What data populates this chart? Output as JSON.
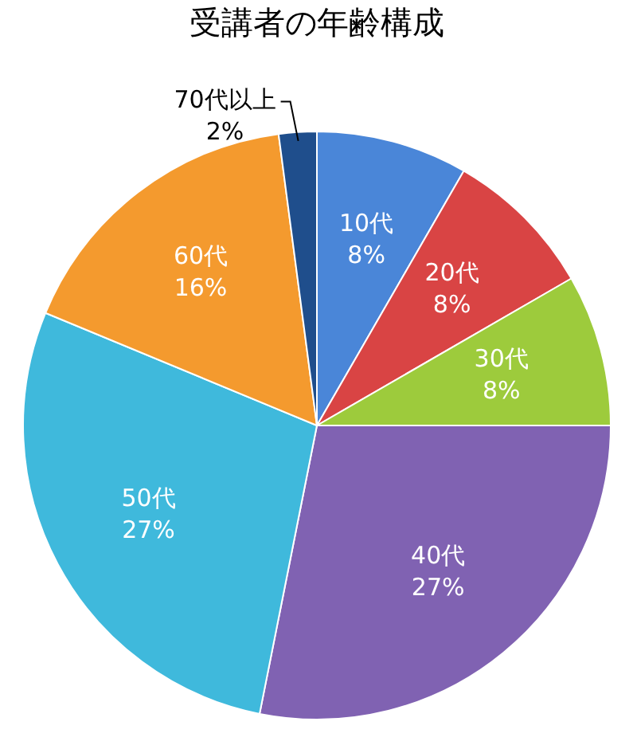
{
  "chart_data": {
    "type": "pie",
    "title": "受講者の年齢構成",
    "categories": [
      "10代",
      "20代",
      "30代",
      "40代",
      "50代",
      "60代",
      "70代以上"
    ],
    "values": [
      8,
      8,
      8,
      27,
      27,
      16,
      2
    ],
    "value_labels": [
      "8%",
      "8%",
      "8%",
      "27%",
      "27%",
      "16%",
      "2%"
    ],
    "colors": [
      "#4a86d8",
      "#d94444",
      "#9dcb3c",
      "#8062b2",
      "#3fb9dc",
      "#f49a2e",
      "#1f4e8c"
    ],
    "legend": false
  }
}
